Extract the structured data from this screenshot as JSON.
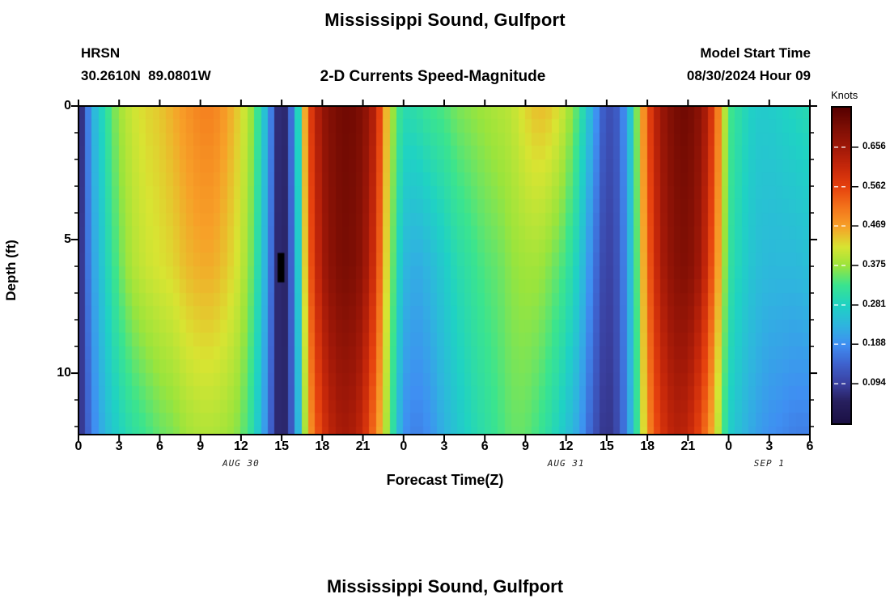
{
  "header": {
    "title": "Mississippi Sound, Gulfport",
    "station": "HRSN",
    "coordinates": "30.2610N  89.0801W",
    "subtitle": "2-D Currents Speed-Magnitude",
    "model_start_label": "Model Start Time",
    "model_start_value": "08/30/2024 Hour 09"
  },
  "axes": {
    "x_label": "Forecast Time(Z)",
    "y_label": "Depth (ft)"
  },
  "colorbar": {
    "title": "Knots",
    "tick_labels": [
      "0.656",
      "0.562",
      "0.469",
      "0.375",
      "0.281",
      "0.188",
      "0.094"
    ],
    "tick_values": [
      0.656,
      0.562,
      0.469,
      0.375,
      0.281,
      0.188,
      0.094
    ]
  },
  "footer": {
    "next_figure_title": "Mississippi Sound, Gulfport"
  },
  "chart_data": {
    "type": "heatmap",
    "title": "Mississippi Sound, Gulfport",
    "subtitle": "2-D Currents Speed-Magnitude",
    "station": "HRSN",
    "coordinates": "30.2610N 89.0801W",
    "model_start": "08/30/2024 Hour 09",
    "xlabel": "Forecast Time(Z)",
    "ylabel": "Depth (ft)",
    "units": "Knots",
    "x_range_hours": [
      0,
      54
    ],
    "y_range_ft": [
      0,
      12.3
    ],
    "value_range_knots": [
      0,
      0.75
    ],
    "x_tick_hours": [
      0,
      3,
      6,
      9,
      12,
      15,
      18,
      21,
      24,
      27,
      30,
      33,
      36,
      39,
      42,
      45,
      48,
      51,
      54
    ],
    "x_tick_labels": [
      "0",
      "3",
      "6",
      "9",
      "12",
      "15",
      "18",
      "21",
      "0",
      "3",
      "6",
      "9",
      "12",
      "15",
      "18",
      "21",
      "0",
      "3",
      "6"
    ],
    "y_major_ticks": [
      {
        "value": 0,
        "label": "0"
      },
      {
        "value": 5,
        "label": "5"
      },
      {
        "value": 10,
        "label": "10"
      }
    ],
    "y_minor_ticks": [
      1,
      2,
      3,
      4,
      6,
      7,
      8,
      9,
      11,
      12
    ],
    "date_annotations": [
      {
        "label": "AUG 30",
        "hour": 12
      },
      {
        "label": "AUG 31",
        "hour": 36
      },
      {
        "label": "SEP 1",
        "hour": 51
      }
    ],
    "hours": [
      0,
      1,
      2,
      3,
      4,
      5,
      6,
      7,
      8,
      9,
      10,
      11,
      12,
      13,
      14,
      15,
      16,
      17,
      18,
      19,
      20,
      21,
      22,
      23,
      24,
      25,
      26,
      27,
      28,
      29,
      30,
      31,
      32,
      33,
      34,
      35,
      36,
      37,
      38,
      39,
      40,
      41,
      42,
      43,
      44,
      45,
      46,
      47,
      48,
      49,
      50,
      51,
      52,
      53,
      54
    ],
    "series": [
      {
        "name": "speed_at_surface_0ft",
        "depth_ft": 0,
        "values": [
          0.03,
          0.22,
          0.31,
          0.38,
          0.41,
          0.43,
          0.44,
          0.46,
          0.48,
          0.5,
          0.5,
          0.47,
          0.43,
          0.36,
          0.22,
          0.02,
          0.2,
          0.55,
          0.67,
          0.71,
          0.72,
          0.7,
          0.62,
          0.4,
          0.3,
          0.31,
          0.33,
          0.34,
          0.36,
          0.37,
          0.38,
          0.39,
          0.4,
          0.43,
          0.45,
          0.44,
          0.4,
          0.33,
          0.22,
          0.11,
          0.14,
          0.3,
          0.55,
          0.66,
          0.71,
          0.72,
          0.68,
          0.56,
          0.34,
          0.3,
          0.27,
          0.27,
          0.28,
          0.29,
          0.3
        ]
      },
      {
        "name": "speed_at_mid_6ft",
        "depth_ft": 6,
        "values": [
          0.05,
          0.2,
          0.28,
          0.35,
          0.39,
          0.41,
          0.42,
          0.43,
          0.45,
          0.46,
          0.46,
          0.44,
          0.41,
          0.34,
          0.2,
          0.02,
          0.18,
          0.52,
          0.65,
          0.7,
          0.71,
          0.68,
          0.58,
          0.38,
          0.24,
          0.22,
          0.24,
          0.27,
          0.3,
          0.32,
          0.34,
          0.35,
          0.37,
          0.38,
          0.38,
          0.36,
          0.33,
          0.27,
          0.17,
          0.09,
          0.13,
          0.28,
          0.52,
          0.64,
          0.69,
          0.7,
          0.65,
          0.52,
          0.32,
          0.28,
          0.25,
          0.24,
          0.24,
          0.24,
          0.25
        ]
      },
      {
        "name": "speed_at_bottom_12ft",
        "depth_ft": 12.3,
        "values": [
          0.06,
          0.17,
          0.24,
          0.28,
          0.31,
          0.33,
          0.35,
          0.36,
          0.38,
          0.39,
          0.39,
          0.38,
          0.36,
          0.3,
          0.17,
          0.03,
          0.16,
          0.46,
          0.58,
          0.64,
          0.65,
          0.61,
          0.5,
          0.35,
          0.19,
          0.17,
          0.19,
          0.23,
          0.26,
          0.29,
          0.31,
          0.33,
          0.35,
          0.35,
          0.33,
          0.3,
          0.26,
          0.21,
          0.13,
          0.07,
          0.12,
          0.26,
          0.48,
          0.58,
          0.63,
          0.62,
          0.55,
          0.44,
          0.28,
          0.24,
          0.21,
          0.19,
          0.18,
          0.17,
          0.17
        ]
      }
    ],
    "missing_data_marker": {
      "hour_start": 14.7,
      "hour_end": 15.2,
      "depth_start_ft": 5.5,
      "depth_end_ft": 6.6,
      "color": "#000000"
    },
    "colormap_stops": [
      [
        0.0,
        "#1b1044"
      ],
      [
        0.07,
        "#27205e"
      ],
      [
        0.125,
        "#3a3f9e"
      ],
      [
        0.19,
        "#3e63cf"
      ],
      [
        0.25,
        "#3f8ff2"
      ],
      [
        0.31,
        "#2fb4df"
      ],
      [
        0.375,
        "#1fd2c4"
      ],
      [
        0.44,
        "#3be48e"
      ],
      [
        0.5,
        "#9ae43c"
      ],
      [
        0.56,
        "#d8e432"
      ],
      [
        0.625,
        "#f7a028"
      ],
      [
        0.69,
        "#f3701a"
      ],
      [
        0.75,
        "#e6410e"
      ],
      [
        0.815,
        "#c5270a"
      ],
      [
        0.875,
        "#a01808"
      ],
      [
        0.94,
        "#7c0e04"
      ],
      [
        1.0,
        "#570000"
      ]
    ],
    "legend_position": "right",
    "grid": false
  }
}
